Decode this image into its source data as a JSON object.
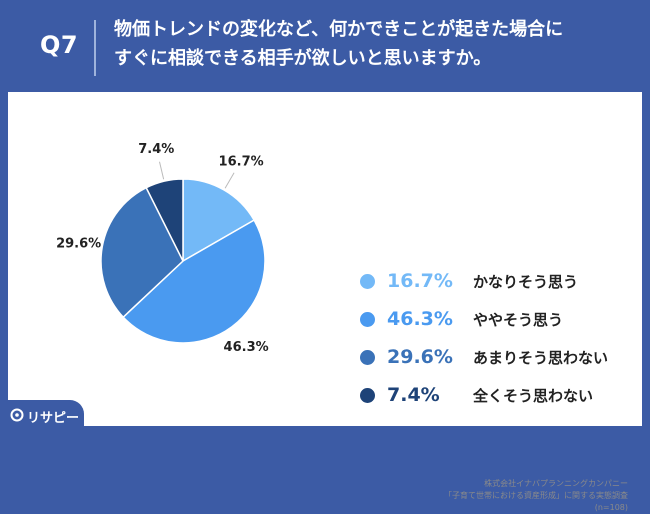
{
  "header": {
    "question_id": "Q7",
    "title_line1": "物価トレンドの変化など、何かできことが起きた場合に",
    "title_line2": "すぐに相談できる相手が欲しいと思いますか。"
  },
  "chart_data": {
    "type": "pie",
    "start": "12 o'clock, clockwise",
    "slices": [
      {
        "label": "かなりそう思う",
        "value": 16.7,
        "display": "16.7%",
        "color": "#73b9f7"
      },
      {
        "label": "ややそう思う",
        "value": 46.3,
        "display": "46.3%",
        "color": "#4a9af0"
      },
      {
        "label": "あまりそう思わない",
        "value": 29.6,
        "display": "29.6%",
        "color": "#3a72b8"
      },
      {
        "label": "全くそう思わない",
        "value": 7.4,
        "display": "7.4%",
        "color": "#1e4378"
      }
    ]
  },
  "source": {
    "line1": "株式会社イナバプランニングカンパニー",
    "line2": "「子育て世帯における資産形成」に関する実態調査",
    "line3": "(n=108)"
  },
  "logo": {
    "text": "リサピー"
  },
  "colors": {
    "header_bg": "#3c5ba5",
    "panel_bg": "#ffffff",
    "outer_label": "#222222"
  }
}
